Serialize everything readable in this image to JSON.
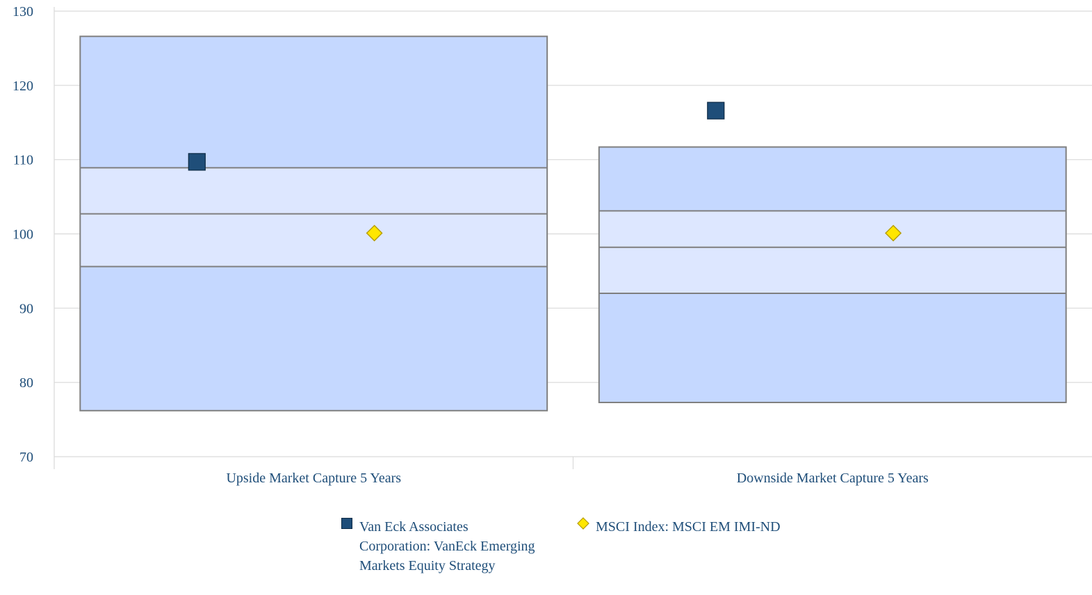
{
  "chart_data": {
    "type": "floating-bar",
    "title": "",
    "xlabel": "",
    "ylabel": "",
    "ylim": [
      70,
      130
    ],
    "yticks": [
      70,
      80,
      90,
      100,
      110,
      120,
      130
    ],
    "grid": true,
    "legend_position": "bottom",
    "categories": [
      "Upside Market Capture 5 Years",
      "Downside Market Capture 5 Years"
    ],
    "percentile_ranges": [
      {
        "category": "Upside Market Capture 5 Years",
        "min": 76.2,
        "p25": 95.6,
        "median": 102.7,
        "p75": 108.9,
        "max": 126.6
      },
      {
        "category": "Downside Market Capture 5 Years",
        "min": 77.3,
        "p25": 92.0,
        "median": 98.2,
        "p75": 103.1,
        "max": 111.7
      }
    ],
    "series": [
      {
        "name": "Van Eck Associates Corporation: VanEck Emerging Markets Equity Strategy",
        "marker": "square",
        "color": "#1f4e79",
        "values": [
          109.7,
          116.6
        ]
      },
      {
        "name": "MSCI Index: MSCI EM IMI-ND",
        "marker": "diamond",
        "color": "#ffe600",
        "values": [
          100.1,
          100.1
        ]
      }
    ],
    "colors": {
      "outer_band": "#c5d8ff",
      "inner_band": "#dde7ff",
      "band_stroke": "#7f7f7f",
      "grid": "#d9d9d9",
      "text": "#1f4e79"
    }
  }
}
